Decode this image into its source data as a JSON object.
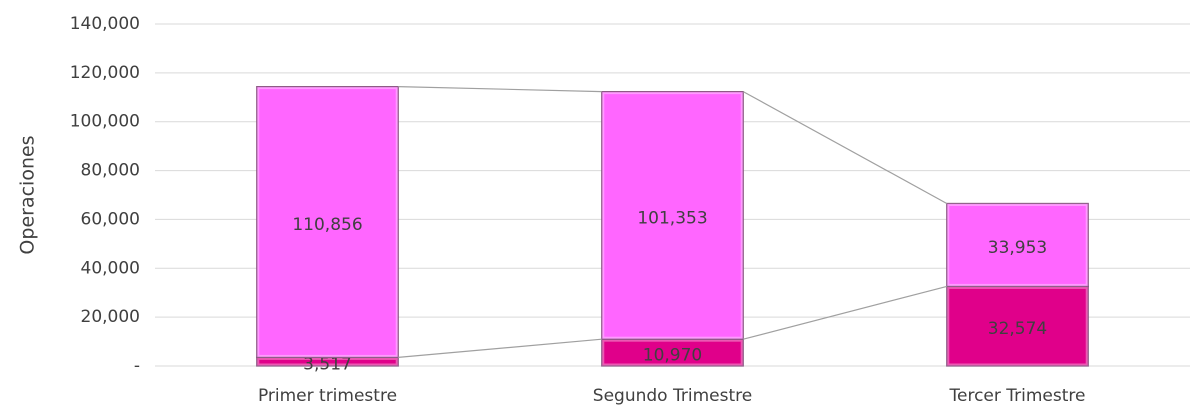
{
  "chart_data": {
    "type": "stacked_bar",
    "y_label": "Operaciones",
    "categories": [
      "Primer trimestre",
      "Segundo Trimestre",
      "Tercer Trimestre"
    ],
    "series": [
      {
        "color": "#e0008a",
        "values": [
          3517,
          10970,
          32574
        ],
        "value_labels": [
          "3,517",
          "10,970",
          "32,574"
        ]
      },
      {
        "color": "#ff66ff",
        "values": [
          110856,
          101353,
          33953
        ],
        "value_labels": [
          "110,856",
          "101,353",
          "33,953"
        ]
      }
    ],
    "ylim": [
      0,
      140000
    ],
    "yticks": [
      {
        "value": 0,
        "label": "-"
      },
      {
        "value": 20000,
        "label": "20,000"
      },
      {
        "value": 40000,
        "label": "40,000"
      },
      {
        "value": 60000,
        "label": "60,000"
      },
      {
        "value": 80000,
        "label": "80,000"
      },
      {
        "value": 100000,
        "label": "100,000"
      },
      {
        "value": 120000,
        "label": "120,000"
      },
      {
        "value": 140000,
        "label": "140,000"
      }
    ],
    "grid": true,
    "series_lines": true
  }
}
